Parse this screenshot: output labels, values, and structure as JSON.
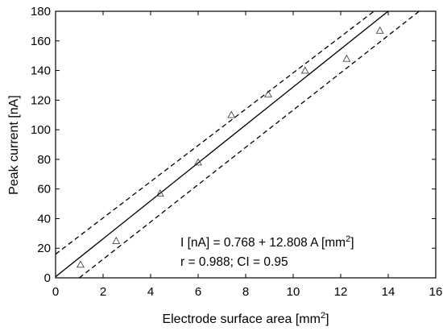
{
  "chart_data": {
    "type": "scatter",
    "xlabel": "Electrode surface area [mm",
    "xlabel_sup": "2",
    "xlabel_end": "]",
    "ylabel": "Peak current [nA]",
    "xlim": [
      0,
      16
    ],
    "ylim": [
      0,
      180
    ],
    "xticks": [
      "0",
      "2",
      "4",
      "6",
      "8",
      "10",
      "12",
      "14",
      "16"
    ],
    "yticks": [
      "0",
      "20",
      "40",
      "60",
      "80",
      "100",
      "120",
      "140",
      "160",
      "180"
    ],
    "grid": false,
    "points": {
      "marker": "triangle",
      "x": [
        1.05,
        2.55,
        4.4,
        6.0,
        7.4,
        8.95,
        10.5,
        12.25,
        13.65
      ],
      "y": [
        9,
        25,
        57,
        78,
        110,
        124,
        140,
        148,
        167
      ]
    },
    "fit": {
      "intercept": 0.768,
      "slope": 12.808
    },
    "confidence_band": {
      "upper": {
        "x": [
          0,
          13.4
        ],
        "y": [
          16,
          180
        ]
      },
      "lower": {
        "x": [
          1.0,
          15.3
        ],
        "y": [
          0,
          180
        ]
      }
    },
    "annotation": {
      "line1_main": "I [nA] = 0.768 + 12.808 A [mm",
      "line1_sup": "2",
      "line1_end": "]",
      "line2": "r = 0.988; CI = 0.95"
    }
  }
}
